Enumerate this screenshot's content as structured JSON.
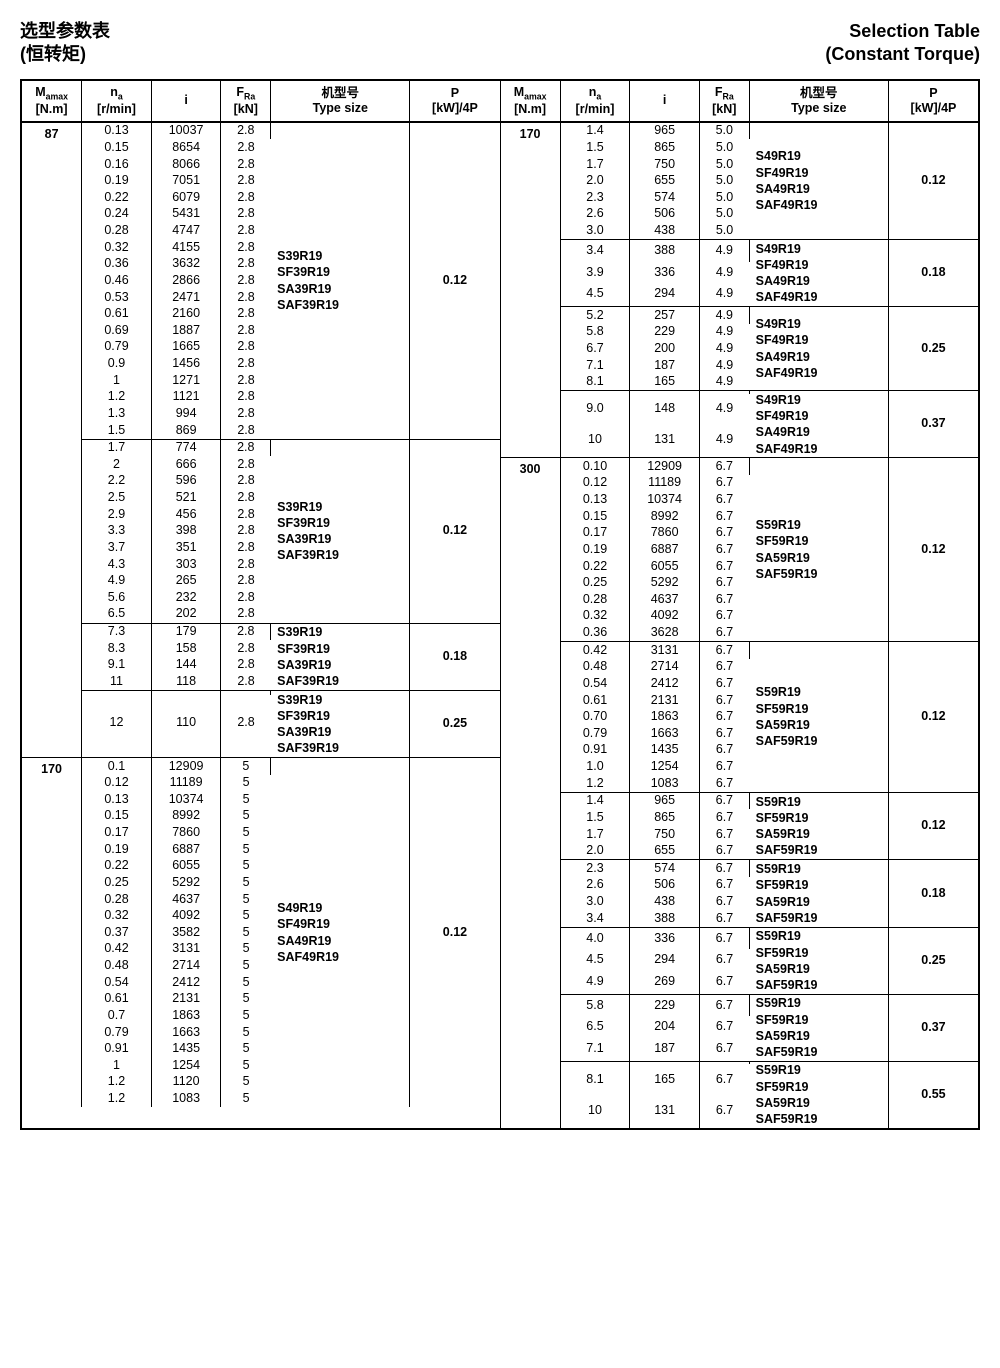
{
  "titles": {
    "left_cn_1": "选型参数表",
    "left_cn_2": "(恒转矩)",
    "right_en_1": "Selection Table",
    "right_en_2": "(Constant Torque)"
  },
  "headers": {
    "M": "M",
    "M_sub": "amax",
    "M_unit": "[N.m]",
    "n": "n",
    "n_sub": "a",
    "n_unit": "[r/min]",
    "i": "i",
    "F": "F",
    "F_sub": "Ra",
    "F_unit": "[kN]",
    "type_cn": "机型号",
    "type_en": "Type size",
    "P": "P",
    "P_unit": "[kW]/4P"
  },
  "types": {
    "s39": "S39R19\nSF39R19\nSA39R19\nSAF39R19",
    "s49": "S49R19\nSF49R19\nSA49R19\nSAF49R19",
    "s59": "S59R19\nSF59R19\nSA59R19\nSAF59R19"
  },
  "leftGroups": [
    {
      "mamax": "87",
      "type": "s39",
      "p": "0.12",
      "topSep": true,
      "rows": [
        [
          "0.13",
          "10037",
          "2.8"
        ],
        [
          "0.15",
          "8654",
          "2.8"
        ],
        [
          "0.16",
          "8066",
          "2.8"
        ],
        [
          "0.19",
          "7051",
          "2.8"
        ],
        [
          "0.22",
          "6079",
          "2.8"
        ],
        [
          "0.24",
          "5431",
          "2.8"
        ],
        [
          "0.28",
          "4747",
          "2.8"
        ],
        [
          "0.32",
          "4155",
          "2.8"
        ],
        [
          "0.36",
          "3632",
          "2.8"
        ],
        [
          "0.46",
          "2866",
          "2.8"
        ],
        [
          "0.53",
          "2471",
          "2.8"
        ],
        [
          "0.61",
          "2160",
          "2.8"
        ],
        [
          "0.69",
          "1887",
          "2.8"
        ],
        [
          "0.79",
          "1665",
          "2.8"
        ],
        [
          "0.9",
          "1456",
          "2.8"
        ],
        [
          "1",
          "1271",
          "2.8"
        ],
        [
          "1.2",
          "1121",
          "2.8"
        ],
        [
          "1.3",
          "994",
          "2.8"
        ],
        [
          "1.5",
          "869",
          "2.8"
        ]
      ]
    },
    {
      "mamax": "",
      "type": "s39",
      "p": "0.12",
      "rows": [
        [
          "1.7",
          "774",
          "2.8"
        ],
        [
          "2",
          "666",
          "2.8"
        ],
        [
          "2.2",
          "596",
          "2.8"
        ],
        [
          "2.5",
          "521",
          "2.8"
        ],
        [
          "2.9",
          "456",
          "2.8"
        ],
        [
          "3.3",
          "398",
          "2.8"
        ],
        [
          "3.7",
          "351",
          "2.8"
        ],
        [
          "4.3",
          "303",
          "2.8"
        ],
        [
          "4.9",
          "265",
          "2.8"
        ],
        [
          "5.6",
          "232",
          "2.8"
        ],
        [
          "6.5",
          "202",
          "2.8"
        ]
      ]
    },
    {
      "mamax": "",
      "type": "s39",
      "p": "0.18",
      "rows": [
        [
          "7.3",
          "179",
          "2.8"
        ],
        [
          "8.3",
          "158",
          "2.8"
        ],
        [
          "9.1",
          "144",
          "2.8"
        ],
        [
          "11",
          "118",
          "2.8"
        ]
      ]
    },
    {
      "mamax": "",
      "type": "s39",
      "p": "0.25",
      "rows": [
        [
          "12",
          "110",
          "2.8"
        ]
      ],
      "minRows": 4
    },
    {
      "mamax": "170",
      "type": "s49",
      "p": "0.12",
      "heavy": true,
      "rows": [
        [
          "0.1",
          "12909",
          "5"
        ],
        [
          "0.12",
          "11189",
          "5"
        ],
        [
          "0.13",
          "10374",
          "5"
        ],
        [
          "0.15",
          "8992",
          "5"
        ],
        [
          "0.17",
          "7860",
          "5"
        ],
        [
          "0.19",
          "6887",
          "5"
        ],
        [
          "0.22",
          "6055",
          "5"
        ],
        [
          "0.25",
          "5292",
          "5"
        ],
        [
          "0.28",
          "4637",
          "5"
        ],
        [
          "0.32",
          "4092",
          "5"
        ],
        [
          "0.37",
          "3582",
          "5"
        ],
        [
          "0.42",
          "3131",
          "5"
        ],
        [
          "0.48",
          "2714",
          "5"
        ],
        [
          "0.54",
          "2412",
          "5"
        ],
        [
          "0.61",
          "2131",
          "5"
        ],
        [
          "0.7",
          "1863",
          "5"
        ],
        [
          "0.79",
          "1663",
          "5"
        ],
        [
          "0.91",
          "1435",
          "5"
        ],
        [
          "1",
          "1254",
          "5"
        ],
        [
          "1.2",
          "1120",
          "5"
        ],
        [
          "1.2",
          "1083",
          "5"
        ]
      ]
    }
  ],
  "rightGroups": [
    {
      "mamax": "170",
      "type": "s49",
      "p": "0.12",
      "topSep": true,
      "rows": [
        [
          "1.4",
          "965",
          "5.0"
        ],
        [
          "1.5",
          "865",
          "5.0"
        ],
        [
          "1.7",
          "750",
          "5.0"
        ],
        [
          "2.0",
          "655",
          "5.0"
        ],
        [
          "2.3",
          "574",
          "5.0"
        ],
        [
          "2.6",
          "506",
          "5.0"
        ],
        [
          "3.0",
          "438",
          "5.0"
        ]
      ]
    },
    {
      "mamax": "",
      "type": "s49",
      "p": "0.18",
      "rows": [
        [
          "3.4",
          "388",
          "4.9"
        ],
        [
          "3.9",
          "336",
          "4.9"
        ],
        [
          "4.5",
          "294",
          "4.9"
        ]
      ],
      "minRows": 4
    },
    {
      "mamax": "",
      "type": "s49",
      "p": "0.25",
      "rows": [
        [
          "5.2",
          "257",
          "4.9"
        ],
        [
          "5.8",
          "229",
          "4.9"
        ],
        [
          "6.7",
          "200",
          "4.9"
        ],
        [
          "7.1",
          "187",
          "4.9"
        ],
        [
          "8.1",
          "165",
          "4.9"
        ]
      ]
    },
    {
      "mamax": "",
      "type": "s49",
      "p": "0.37",
      "rows": [
        [
          "9.0",
          "148",
          "4.9"
        ],
        [
          "10",
          "131",
          "4.9"
        ]
      ],
      "minRows": 4
    },
    {
      "mamax": "300",
      "type": "s59",
      "p": "0.12",
      "heavy": true,
      "rows": [
        [
          "0.10",
          "12909",
          "6.7"
        ],
        [
          "0.12",
          "11189",
          "6.7"
        ],
        [
          "0.13",
          "10374",
          "6.7"
        ],
        [
          "0.15",
          "8992",
          "6.7"
        ],
        [
          "0.17",
          "7860",
          "6.7"
        ],
        [
          "0.19",
          "6887",
          "6.7"
        ],
        [
          "0.22",
          "6055",
          "6.7"
        ],
        [
          "0.25",
          "5292",
          "6.7"
        ],
        [
          "0.28",
          "4637",
          "6.7"
        ],
        [
          "0.32",
          "4092",
          "6.7"
        ],
        [
          "0.36",
          "3628",
          "6.7"
        ]
      ]
    },
    {
      "mamax": "",
      "type": "s59",
      "p": "0.12",
      "rows": [
        [
          "0.42",
          "3131",
          "6.7"
        ],
        [
          "0.48",
          "2714",
          "6.7"
        ],
        [
          "0.54",
          "2412",
          "6.7"
        ],
        [
          "0.61",
          "2131",
          "6.7"
        ],
        [
          "0.70",
          "1863",
          "6.7"
        ],
        [
          "0.79",
          "1663",
          "6.7"
        ],
        [
          "0.91",
          "1435",
          "6.7"
        ],
        [
          "1.0",
          "1254",
          "6.7"
        ],
        [
          "1.2",
          "1083",
          "6.7"
        ]
      ]
    },
    {
      "mamax": "",
      "type": "s59",
      "p": "0.12",
      "rows": [
        [
          "1.4",
          "965",
          "6.7"
        ],
        [
          "1.5",
          "865",
          "6.7"
        ],
        [
          "1.7",
          "750",
          "6.7"
        ],
        [
          "2.0",
          "655",
          "6.7"
        ]
      ]
    },
    {
      "mamax": "",
      "type": "s59",
      "p": "0.18",
      "rows": [
        [
          "2.3",
          "574",
          "6.7"
        ],
        [
          "2.6",
          "506",
          "6.7"
        ],
        [
          "3.0",
          "438",
          "6.7"
        ],
        [
          "3.4",
          "388",
          "6.7"
        ]
      ]
    },
    {
      "mamax": "",
      "type": "s59",
      "p": "0.25",
      "rows": [
        [
          "4.0",
          "336",
          "6.7"
        ],
        [
          "4.5",
          "294",
          "6.7"
        ],
        [
          "4.9",
          "269",
          "6.7"
        ]
      ],
      "minRows": 4
    },
    {
      "mamax": "",
      "type": "s59",
      "p": "0.37",
      "rows": [
        [
          "5.8",
          "229",
          "6.7"
        ],
        [
          "6.5",
          "204",
          "6.7"
        ],
        [
          "7.1",
          "187",
          "6.7"
        ]
      ],
      "minRows": 4
    },
    {
      "mamax": "",
      "type": "s59",
      "p": "0.55",
      "rows": [
        [
          "8.1",
          "165",
          "6.7"
        ],
        [
          "10",
          "131",
          "6.7"
        ]
      ],
      "minRows": 4
    }
  ]
}
